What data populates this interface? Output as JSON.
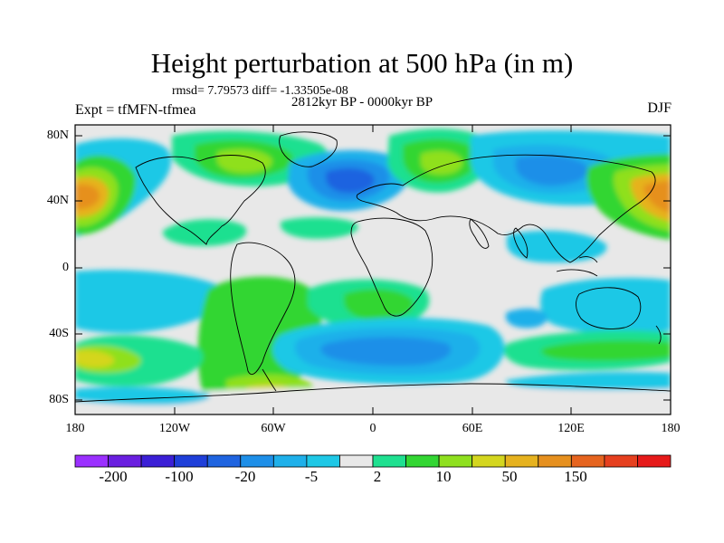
{
  "title": "Height perturbation at 500 hPa (in m)",
  "stats": "rmsd= 7.79573 diff= -1.33505e-08",
  "period": "2812kyr BP - 0000kyr BP",
  "experiment": "Expt = tfMFN-tfmea",
  "season": "DJF",
  "lat_labels": [
    "80N",
    "40N",
    "0",
    "40S",
    "80S"
  ],
  "lon_labels": [
    "180",
    "120W",
    "60W",
    "0",
    "60E",
    "120E",
    "180"
  ],
  "colorbar": {
    "colors": [
      "#9b30ff",
      "#6a1fe0",
      "#3b1fd6",
      "#1f3fd9",
      "#1f64e0",
      "#1e8fe8",
      "#1fb0ea",
      "#1fc8e6",
      "#e8e8e8",
      "#1fe090",
      "#33d633",
      "#8fe01f",
      "#d4d61f",
      "#e6b21f",
      "#e6901f",
      "#e6641f",
      "#e6401f",
      "#e61a1a"
    ],
    "labels": [
      "-200",
      "-100",
      "-20",
      "-5",
      "2",
      "10",
      "50",
      "150"
    ]
  },
  "colors": {
    "background": "#e8e8e8",
    "coast": "#000000"
  }
}
